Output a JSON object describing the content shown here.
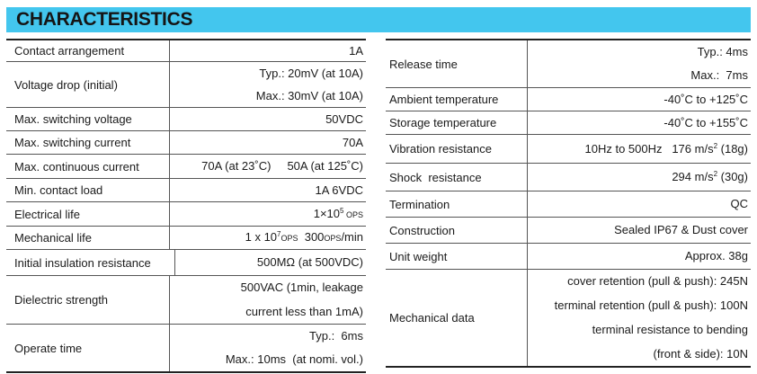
{
  "header": {
    "title": "CHARACTERISTICS"
  },
  "left_rows": [
    {
      "label": "Contact arrangement",
      "lines": [
        "1A"
      ]
    },
    {
      "label": "Voltage drop (initial)",
      "lines": [
        "Typ.: 20mV (at 10A)",
        "Max.: 30mV (at 10A)"
      ]
    },
    {
      "label": "Max. switching voltage",
      "lines": [
        "50VDC"
      ]
    },
    {
      "label": "Max. switching current",
      "lines": [
        "70A"
      ]
    },
    {
      "label": "Max. continuous current",
      "v1": "70A (at 23˚C)",
      "v2": "50A (at 125˚C)"
    },
    {
      "label": "Min. contact load",
      "lines": [
        "1A  6VDC"
      ]
    },
    {
      "label": "Electrical life",
      "pre": "1×10",
      "sup": "5",
      "post": " OPS"
    },
    {
      "label": "Mechanical life",
      "pre": "1 x 10",
      "sup": "7",
      "sc1": "OPS",
      "mid": "  300",
      "sc2": "OPS",
      "post": "/min"
    },
    {
      "label": "Initial insulation resistance",
      "lines": [
        "500MΩ (at 500VDC)"
      ]
    },
    {
      "label": "Dielectric strength",
      "lines": [
        "500VAC (1min, leakage",
        "current less than 1mA)"
      ]
    },
    {
      "label": "Operate time",
      "lines": [
        "Typ.:  6ms",
        "Max.: 10ms  (at nomi. vol.)"
      ]
    }
  ],
  "right_rows": [
    {
      "label": "Release time",
      "lines": [
        "Typ.: 4ms",
        "Max.:  7ms"
      ]
    },
    {
      "label": "Ambient temperature",
      "lines": [
        "-40˚C to +125˚C"
      ]
    },
    {
      "label": "Storage temperature",
      "lines": [
        "-40˚C to +155˚C"
      ]
    },
    {
      "label": "Vibration resistance",
      "pre": "10Hz to 500Hz   176 m/s",
      "sup": "2",
      "post": " (18g)"
    },
    {
      "label": "Shock  resistance",
      "pre": "294 m/s",
      "sup": "2",
      "post": " (30g)"
    },
    {
      "label": "Termination",
      "lines": [
        "QC"
      ]
    },
    {
      "label": "Construction",
      "lines": [
        "Sealed IP67 & Dust cover"
      ]
    },
    {
      "label": "Unit weight",
      "lines": [
        "Approx. 38g"
      ]
    },
    {
      "label": "Mechanical data",
      "lines": [
        "cover retention (pull & push): 245N",
        "terminal retention (pull & push): 100N",
        "terminal resistance to bending",
        "(front & side): 10N"
      ]
    }
  ]
}
